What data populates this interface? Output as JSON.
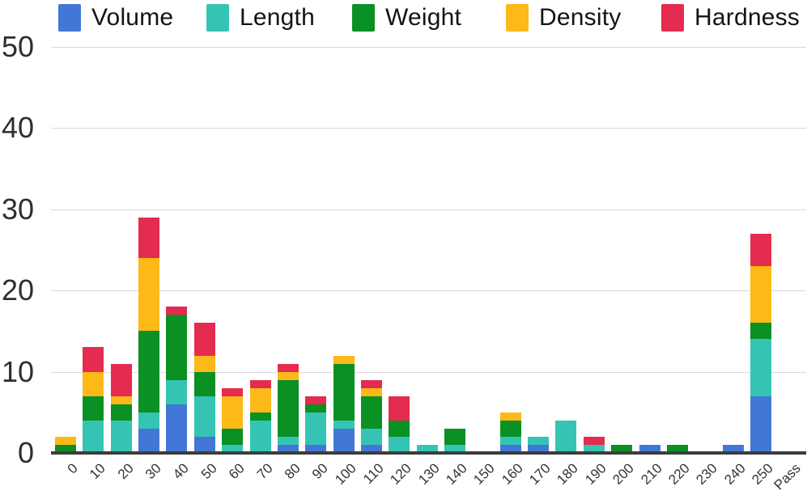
{
  "chart_data": {
    "type": "bar",
    "stacked": true,
    "title": "",
    "xlabel": "",
    "ylabel": "",
    "ylim": [
      0,
      50
    ],
    "y_ticks": [
      0,
      10,
      20,
      30,
      40,
      50
    ],
    "grid": true,
    "legend_position": "top",
    "categories": [
      "0",
      "10",
      "20",
      "30",
      "40",
      "50",
      "60",
      "70",
      "80",
      "90",
      "100",
      "110",
      "120",
      "130",
      "140",
      "150",
      "160",
      "170",
      "180",
      "190",
      "200",
      "210",
      "220",
      "230",
      "240",
      "250",
      "Pass"
    ],
    "series": [
      {
        "name": "Volume",
        "color": "#4377d6",
        "values": [
          0,
          0,
          0,
          3,
          6,
          2,
          0,
          0,
          1,
          1,
          3,
          1,
          0,
          0,
          0,
          0,
          1,
          1,
          0,
          0,
          0,
          1,
          0,
          0,
          1,
          7,
          0
        ]
      },
      {
        "name": "Length",
        "color": "#35c4b4",
        "values": [
          0,
          4,
          4,
          2,
          3,
          5,
          1,
          4,
          1,
          4,
          1,
          2,
          2,
          1,
          1,
          0,
          1,
          1,
          4,
          1,
          0,
          0,
          0,
          0,
          0,
          7,
          0
        ]
      },
      {
        "name": "Weight",
        "color": "#0a9023",
        "values": [
          1,
          3,
          2,
          10,
          8,
          3,
          2,
          1,
          7,
          1,
          7,
          4,
          2,
          0,
          2,
          0,
          2,
          0,
          0,
          0,
          1,
          0,
          1,
          0,
          0,
          2,
          0
        ]
      },
      {
        "name": "Density",
        "color": "#fcb918",
        "values": [
          1,
          3,
          1,
          9,
          0,
          2,
          4,
          3,
          1,
          0,
          1,
          1,
          0,
          0,
          0,
          0,
          1,
          0,
          0,
          0,
          0,
          0,
          0,
          0,
          0,
          7,
          0
        ]
      },
      {
        "name": "Hardness",
        "color": "#e52b4f",
        "values": [
          0,
          3,
          4,
          5,
          1,
          4,
          1,
          1,
          1,
          1,
          0,
          1,
          3,
          0,
          0,
          0,
          0,
          0,
          0,
          1,
          0,
          0,
          0,
          0,
          0,
          4,
          0
        ]
      }
    ],
    "totals": [
      2,
      13,
      11,
      29,
      18,
      16,
      8,
      9,
      11,
      7,
      12,
      9,
      7,
      1,
      3,
      0,
      5,
      2,
      4,
      2,
      1,
      1,
      1,
      0,
      1,
      27,
      0
    ],
    "axis_colors": {
      "grid": "#d9d9d9",
      "baseline": "#3c3c3c",
      "y_tick_text": "#2f2f2f",
      "x_tick_text": "#333333"
    }
  }
}
